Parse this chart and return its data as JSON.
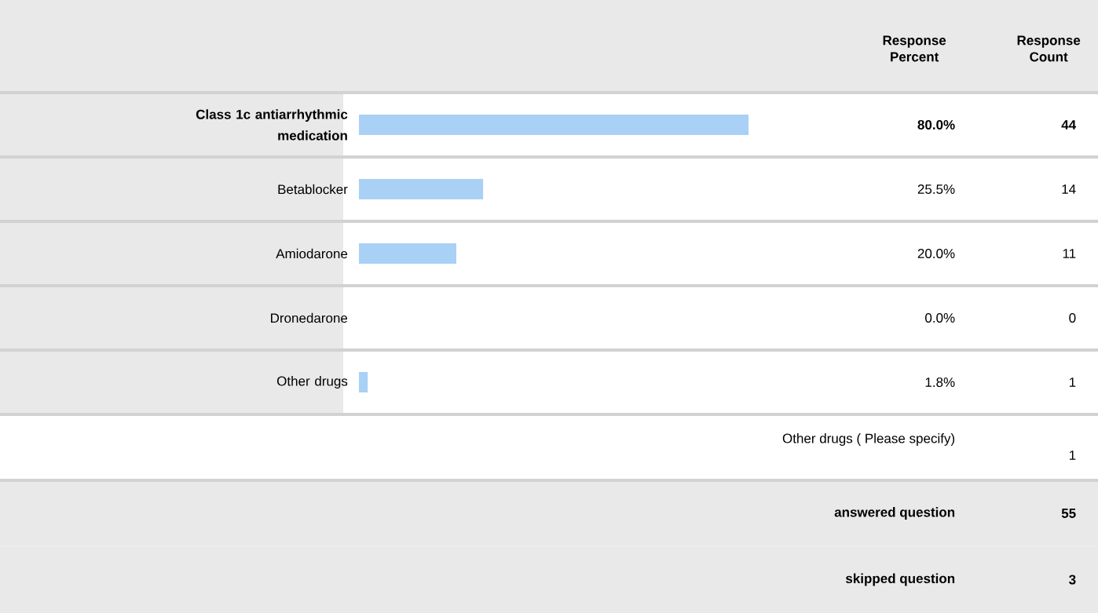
{
  "chart_data": {
    "type": "bar",
    "orientation": "horizontal",
    "categories": [
      "Class 1c antiarrhythmic medication",
      "Betablocker",
      "Amiodarone",
      "Dronedarone",
      "Other drugs"
    ],
    "values": [
      80.0,
      25.5,
      20.0,
      0.0,
      1.8
    ],
    "value_labels": [
      "80.0%",
      "25.5%",
      "20.0%",
      "0.0%",
      "1.8%"
    ],
    "color": "#a9d0f5",
    "annotations": [
      "Response Percent",
      "Response Count",
      "44",
      "14",
      "11",
      "0",
      "1",
      "Other drugs ( Please specify)",
      "1",
      "answered question",
      "55",
      "skipped question",
      "3"
    ]
  }
}
